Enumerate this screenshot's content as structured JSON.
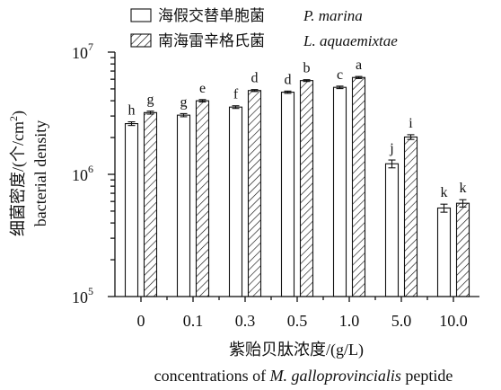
{
  "chart_data": {
    "type": "bar",
    "title": "",
    "categories": [
      "0",
      "0.1",
      "0.3",
      "0.5",
      "1.0",
      "5.0",
      "10.0"
    ],
    "y_scale": "log",
    "ylim": [
      100000,
      10000000
    ],
    "grid": false,
    "legend_position": "top-left",
    "x_axis": {
      "label_cn": "紫贻贝肽浓度/(g/L)",
      "label_en_prefix": "concentrations of ",
      "label_en_italic": "M. galloprovincialis",
      "label_en_suffix": " peptide"
    },
    "y_axis": {
      "label_cn_prefix": "细菌密度/(个/cm",
      "label_cn_superscript": "2",
      "label_cn_suffix": ")",
      "label_en": "bacterial density",
      "ticks": [
        {
          "base": "10",
          "exp": "5"
        },
        {
          "base": "10",
          "exp": "6"
        },
        {
          "base": "10",
          "exp": "7"
        }
      ]
    },
    "series": [
      {
        "name_cn": "海假交替单胞菌",
        "name_en": "P. marina",
        "fill": "#ffffff",
        "pattern": "solid",
        "values": [
          2600000,
          3050000,
          3550000,
          4700000,
          5150000,
          1220000,
          530000
        ],
        "errors": [
          90000,
          90000,
          90000,
          100000,
          120000,
          90000,
          40000
        ],
        "letters": [
          "h",
          "g",
          "f",
          "d",
          "c",
          "j",
          "k"
        ]
      },
      {
        "name_cn": "南海雷辛格氏菌",
        "name_en": "L. aquaemixtae",
        "fill": "#ffffff",
        "pattern": "hatch",
        "values": [
          3200000,
          4000000,
          4850000,
          5850000,
          6200000,
          2020000,
          580000
        ],
        "errors": [
          90000,
          90000,
          90000,
          100000,
          120000,
          90000,
          40000
        ],
        "letters": [
          "g",
          "e",
          "d",
          "b",
          "a",
          "i",
          "k"
        ]
      }
    ]
  }
}
